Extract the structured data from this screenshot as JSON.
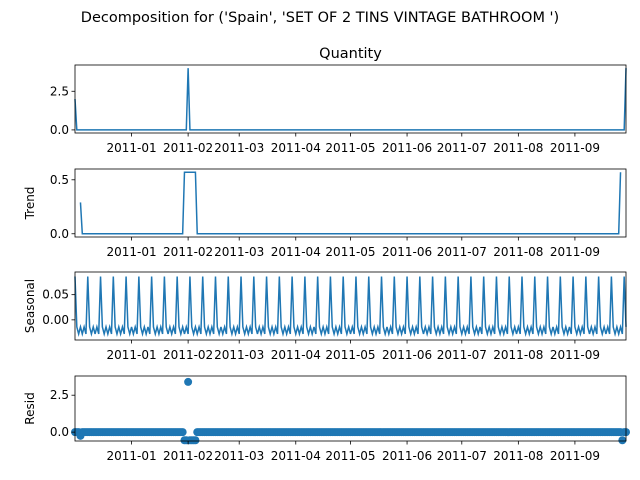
{
  "suptitle": "Decomposition for ('Spain', 'SET OF 2 TINS VINTAGE BATHROOM ')",
  "colors": {
    "series": "#1f77b4",
    "axes": "#000000",
    "background": "#ffffff"
  },
  "chart_data": [
    {
      "type": "line",
      "title": "Quantity",
      "ylabel": "",
      "x_start": "2010-12-01",
      "x_end": "2011-09-29",
      "x_tick_labels": [
        "2011-01",
        "2011-02",
        "2011-03",
        "2011-04",
        "2011-05",
        "2011-06",
        "2011-07",
        "2011-08",
        "2011-09"
      ],
      "ylim": [
        -0.2,
        4.2
      ],
      "y_ticks": [
        0.0,
        2.5
      ],
      "y_tick_labels": [
        "0.0",
        "2.5"
      ],
      "grid": false,
      "points": [
        {
          "x": "2010-12-01",
          "y": 2.0
        },
        {
          "x": "2010-12-02",
          "y": 0.0
        },
        {
          "x": "2011-01-31",
          "y": 0.0
        },
        {
          "x": "2011-02-01",
          "y": 4.0
        },
        {
          "x": "2011-02-02",
          "y": 0.0
        },
        {
          "x": "2011-09-28",
          "y": 0.0
        },
        {
          "x": "2011-09-29",
          "y": 4.0
        }
      ]
    },
    {
      "type": "line",
      "title": "",
      "ylabel": "Trend",
      "x_start": "2010-12-01",
      "x_end": "2011-09-29",
      "x_tick_labels": [
        "2011-01",
        "2011-02",
        "2011-03",
        "2011-04",
        "2011-05",
        "2011-06",
        "2011-07",
        "2011-08",
        "2011-09"
      ],
      "ylim": [
        -0.03,
        0.6
      ],
      "y_ticks": [
        0.0,
        0.5
      ],
      "y_tick_labels": [
        "0.0",
        "0.5"
      ],
      "grid": false,
      "points": [
        {
          "x": "2010-12-04",
          "y": 0.29
        },
        {
          "x": "2010-12-05",
          "y": 0.0
        },
        {
          "x": "2011-01-29",
          "y": 0.0
        },
        {
          "x": "2011-01-30",
          "y": 0.57
        },
        {
          "x": "2011-02-05",
          "y": 0.57
        },
        {
          "x": "2011-02-06",
          "y": 0.0
        },
        {
          "x": "2011-09-25",
          "y": 0.0
        },
        {
          "x": "2011-09-26",
          "y": 0.57
        }
      ]
    },
    {
      "type": "line",
      "title": "",
      "ylabel": "Seasonal",
      "x_start": "2010-12-01",
      "x_end": "2011-09-29",
      "x_tick_labels": [
        "2011-01",
        "2011-02",
        "2011-03",
        "2011-04",
        "2011-05",
        "2011-06",
        "2011-07",
        "2011-08",
        "2011-09"
      ],
      "ylim": [
        -0.04,
        0.095
      ],
      "y_ticks": [
        0.0,
        0.05
      ],
      "y_tick_labels": [
        "0.00",
        "0.05"
      ],
      "grid": false,
      "period_days": 7,
      "weekly_pattern": [
        0.086,
        -0.014,
        -0.028,
        -0.014,
        -0.028,
        -0.014,
        -0.028
      ]
    },
    {
      "type": "scatter",
      "title": "",
      "ylabel": "Resid",
      "x_start": "2010-12-01",
      "x_end": "2011-09-29",
      "x_tick_labels": [
        "2011-01",
        "2011-02",
        "2011-03",
        "2011-04",
        "2011-05",
        "2011-06",
        "2011-07",
        "2011-08",
        "2011-09"
      ],
      "ylim": [
        -0.6,
        3.8
      ],
      "y_ticks": [
        0.0,
        2.5
      ],
      "y_tick_labels": [
        "0.0",
        "2.5"
      ],
      "grid": false,
      "baseline": 0.0,
      "special_points": [
        {
          "x": "2010-12-04",
          "y": -0.25
        },
        {
          "x": "2011-01-30",
          "y": -0.55
        },
        {
          "x": "2011-01-31",
          "y": -0.55
        },
        {
          "x": "2011-02-01",
          "y": 3.4
        },
        {
          "x": "2011-02-02",
          "y": -0.55
        },
        {
          "x": "2011-02-03",
          "y": -0.55
        },
        {
          "x": "2011-02-04",
          "y": -0.55
        },
        {
          "x": "2011-02-05",
          "y": -0.55
        },
        {
          "x": "2011-09-27",
          "y": -0.55
        }
      ]
    }
  ]
}
